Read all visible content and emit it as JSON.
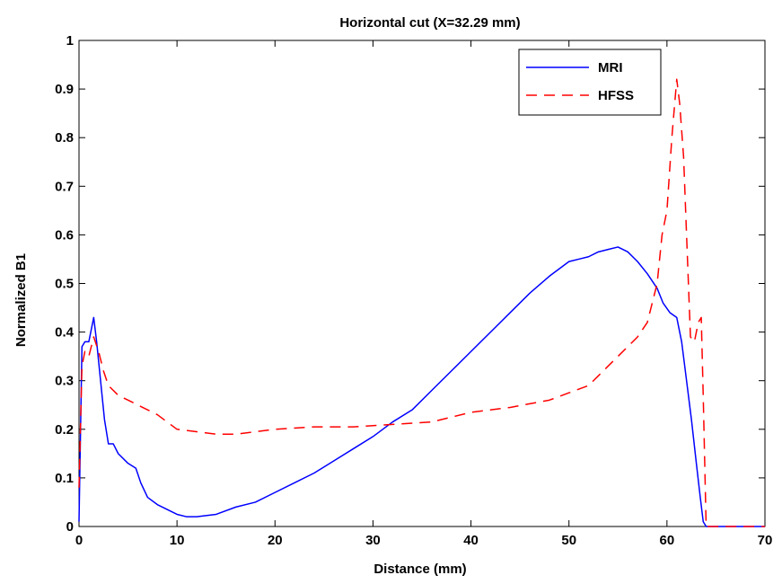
{
  "chart_data": {
    "type": "line",
    "title": "Horizontal cut (X=32.29 mm)",
    "xlabel": "Distance (mm)",
    "ylabel": "Normalized B1",
    "xlim": [
      0,
      70
    ],
    "ylim": [
      0,
      1
    ],
    "x_ticks": [
      0,
      10,
      20,
      30,
      40,
      50,
      60,
      70
    ],
    "y_ticks": [
      0,
      0.1,
      0.2,
      0.3,
      0.4,
      0.5,
      0.6,
      0.7,
      0.8,
      0.9,
      1
    ],
    "x_tick_labels": [
      "0",
      "10",
      "20",
      "30",
      "40",
      "50",
      "60",
      "70"
    ],
    "y_tick_labels": [
      "0",
      "0.1",
      "0.2",
      "0.3",
      "0.4",
      "0.5",
      "0.6",
      "0.7",
      "0.8",
      "0.9",
      "1"
    ],
    "grid": false,
    "legend": {
      "position": "top-right"
    },
    "series": [
      {
        "name": "MRI",
        "color": "#0000ff",
        "style": "solid",
        "x": [
          0,
          0.3,
          0.6,
          1.0,
          1.5,
          1.8,
          2.2,
          2.6,
          3.0,
          3.5,
          4.0,
          5.0,
          5.8,
          6.3,
          7.0,
          8.0,
          9.0,
          10.0,
          11.0,
          12.0,
          14.0,
          16.0,
          18.0,
          20.0,
          22.0,
          24.0,
          26.0,
          28.0,
          30.0,
          32.0,
          34.0,
          36.0,
          38.0,
          40.0,
          42.0,
          44.0,
          46.0,
          48.0,
          50.0,
          51.0,
          52.0,
          53.0,
          54.0,
          55.0,
          56.0,
          57.0,
          58.0,
          59.0,
          59.6,
          60.3,
          61.0,
          61.5,
          62.0,
          62.5,
          63.0,
          63.4,
          63.7,
          64.0,
          65.0,
          66.0,
          68.0,
          70.0
        ],
        "y": [
          0.01,
          0.37,
          0.38,
          0.38,
          0.43,
          0.38,
          0.3,
          0.22,
          0.17,
          0.17,
          0.15,
          0.13,
          0.12,
          0.09,
          0.06,
          0.045,
          0.035,
          0.025,
          0.02,
          0.02,
          0.025,
          0.04,
          0.05,
          0.07,
          0.09,
          0.11,
          0.135,
          0.16,
          0.185,
          0.215,
          0.24,
          0.28,
          0.32,
          0.36,
          0.4,
          0.44,
          0.48,
          0.515,
          0.545,
          0.55,
          0.555,
          0.565,
          0.57,
          0.575,
          0.565,
          0.545,
          0.52,
          0.49,
          0.46,
          0.44,
          0.43,
          0.38,
          0.3,
          0.22,
          0.13,
          0.06,
          0.01,
          0,
          0,
          0,
          0,
          0
        ]
      },
      {
        "name": "HFSS",
        "color": "#ff0000",
        "style": "dashed",
        "x": [
          0,
          0.3,
          0.6,
          1.0,
          1.5,
          2.0,
          2.5,
          3.0,
          4.0,
          5.0,
          6.0,
          7.0,
          8.0,
          9.0,
          10.0,
          12.0,
          14.0,
          16.0,
          18.0,
          20.0,
          24.0,
          28.0,
          32.0,
          36.0,
          38.0,
          40.0,
          44.0,
          48.0,
          50.0,
          52.0,
          54.0,
          56.0,
          57.0,
          58.0,
          59.0,
          59.5,
          60.0,
          60.5,
          61.0,
          61.3,
          61.7,
          62.0,
          62.4,
          62.8,
          63.2,
          63.5,
          63.7,
          64.0,
          65.0,
          66.0,
          68.0,
          70.0
        ],
        "y": [
          0.08,
          0.33,
          0.36,
          0.35,
          0.39,
          0.36,
          0.32,
          0.29,
          0.27,
          0.26,
          0.25,
          0.24,
          0.23,
          0.215,
          0.2,
          0.195,
          0.19,
          0.19,
          0.195,
          0.2,
          0.205,
          0.205,
          0.21,
          0.215,
          0.225,
          0.235,
          0.245,
          0.26,
          0.275,
          0.29,
          0.33,
          0.37,
          0.39,
          0.42,
          0.5,
          0.6,
          0.65,
          0.8,
          0.92,
          0.87,
          0.76,
          0.6,
          0.39,
          0.38,
          0.42,
          0.43,
          0.27,
          0,
          0,
          0,
          0,
          0
        ]
      }
    ]
  }
}
